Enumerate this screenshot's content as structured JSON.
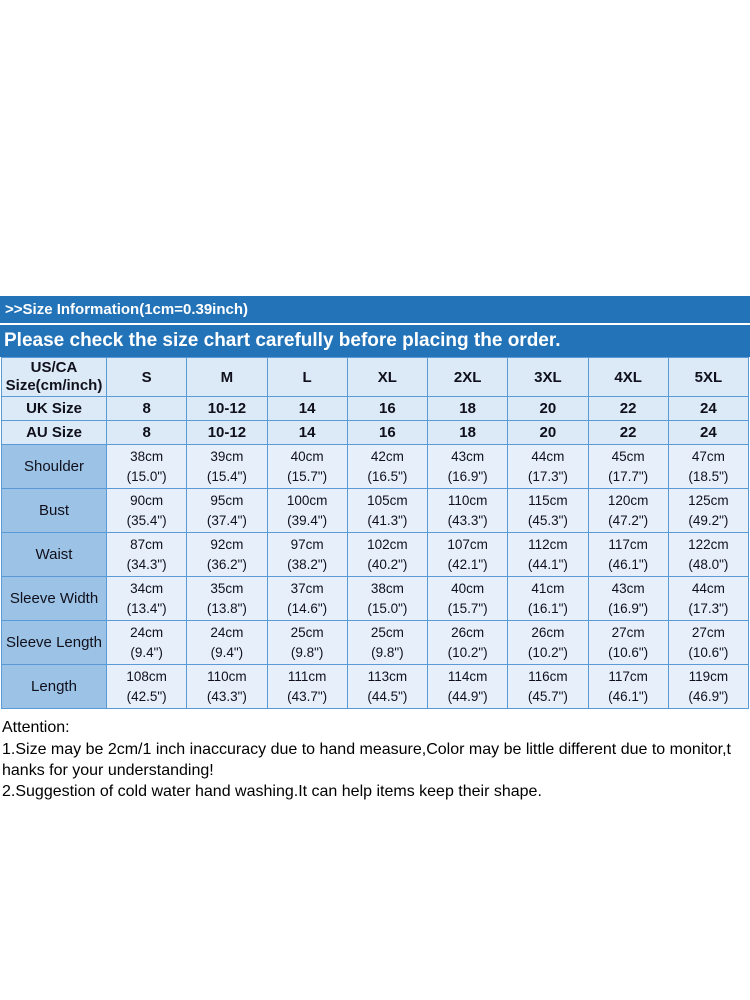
{
  "colors": {
    "banner_blue": "#2273B8",
    "table_border": "#5B9BD5",
    "header_bg": "#DCEAF7",
    "label_bg": "#9CC2E5",
    "data_bg": "#E7F0FA"
  },
  "banners": {
    "size_info": ">>Size Information(1cm=0.39inch)",
    "check_notice": "Please check the size chart carefully before placing the order."
  },
  "table": {
    "header": [
      "US/CA\nSize(cm/inch)",
      "S",
      "M",
      "L",
      "XL",
      "2XL",
      "3XL",
      "4XL",
      "5XL"
    ],
    "size_rows": [
      {
        "label": "UK Size",
        "values": [
          "8",
          "10-12",
          "14",
          "16",
          "18",
          "20",
          "22",
          "24"
        ]
      },
      {
        "label": "AU Size",
        "values": [
          "8",
          "10-12",
          "14",
          "16",
          "18",
          "20",
          "22",
          "24"
        ]
      }
    ],
    "measurement_rows": [
      {
        "label": "Shoulder",
        "values": [
          "38cm\n(15.0\")",
          "39cm\n(15.4\")",
          "40cm\n(15.7\")",
          "42cm\n(16.5\")",
          "43cm\n(16.9\")",
          "44cm\n(17.3\")",
          "45cm\n(17.7\")",
          "47cm\n(18.5\")"
        ]
      },
      {
        "label": "Bust",
        "values": [
          "90cm\n(35.4\")",
          "95cm\n(37.4\")",
          "100cm\n(39.4\")",
          "105cm\n(41.3\")",
          "110cm\n(43.3\")",
          "115cm\n(45.3\")",
          "120cm\n(47.2\")",
          "125cm\n(49.2\")"
        ]
      },
      {
        "label": "Waist",
        "values": [
          "87cm\n(34.3\")",
          "92cm\n(36.2\")",
          "97cm\n(38.2\")",
          "102cm\n(40.2\")",
          "107cm\n(42.1\")",
          "112cm\n(44.1\")",
          "117cm\n(46.1\")",
          "122cm\n(48.0\")"
        ]
      },
      {
        "label": "Sleeve Width",
        "values": [
          "34cm\n(13.4\")",
          "35cm\n(13.8\")",
          "37cm\n(14.6\")",
          "38cm\n(15.0\")",
          "40cm\n(15.7\")",
          "41cm\n(16.1\")",
          "43cm\n(16.9\")",
          "44cm\n(17.3\")"
        ]
      },
      {
        "label": "Sleeve Length",
        "values": [
          "24cm\n(9.4\")",
          "24cm\n(9.4\")",
          "25cm\n(9.8\")",
          "25cm\n(9.8\")",
          "26cm\n(10.2\")",
          "26cm\n(10.2\")",
          "27cm\n(10.6\")",
          "27cm\n(10.6\")"
        ]
      },
      {
        "label": "Length",
        "values": [
          "108cm\n(42.5\")",
          "110cm\n(43.3\")",
          "111cm\n(43.7\")",
          "113cm\n(44.5\")",
          "114cm\n(44.9\")",
          "116cm\n(45.7\")",
          "117cm\n(46.1\")",
          "119cm\n(46.9\")"
        ]
      }
    ]
  },
  "attention": {
    "title": "Attention:",
    "lines": [
      "1.Size may be 2cm/1 inch inaccuracy due to hand measure,Color may be little different due to monitor,t",
      "hanks for your understanding!",
      "2.Suggestion of cold water hand washing.It can help items keep their shape."
    ]
  }
}
